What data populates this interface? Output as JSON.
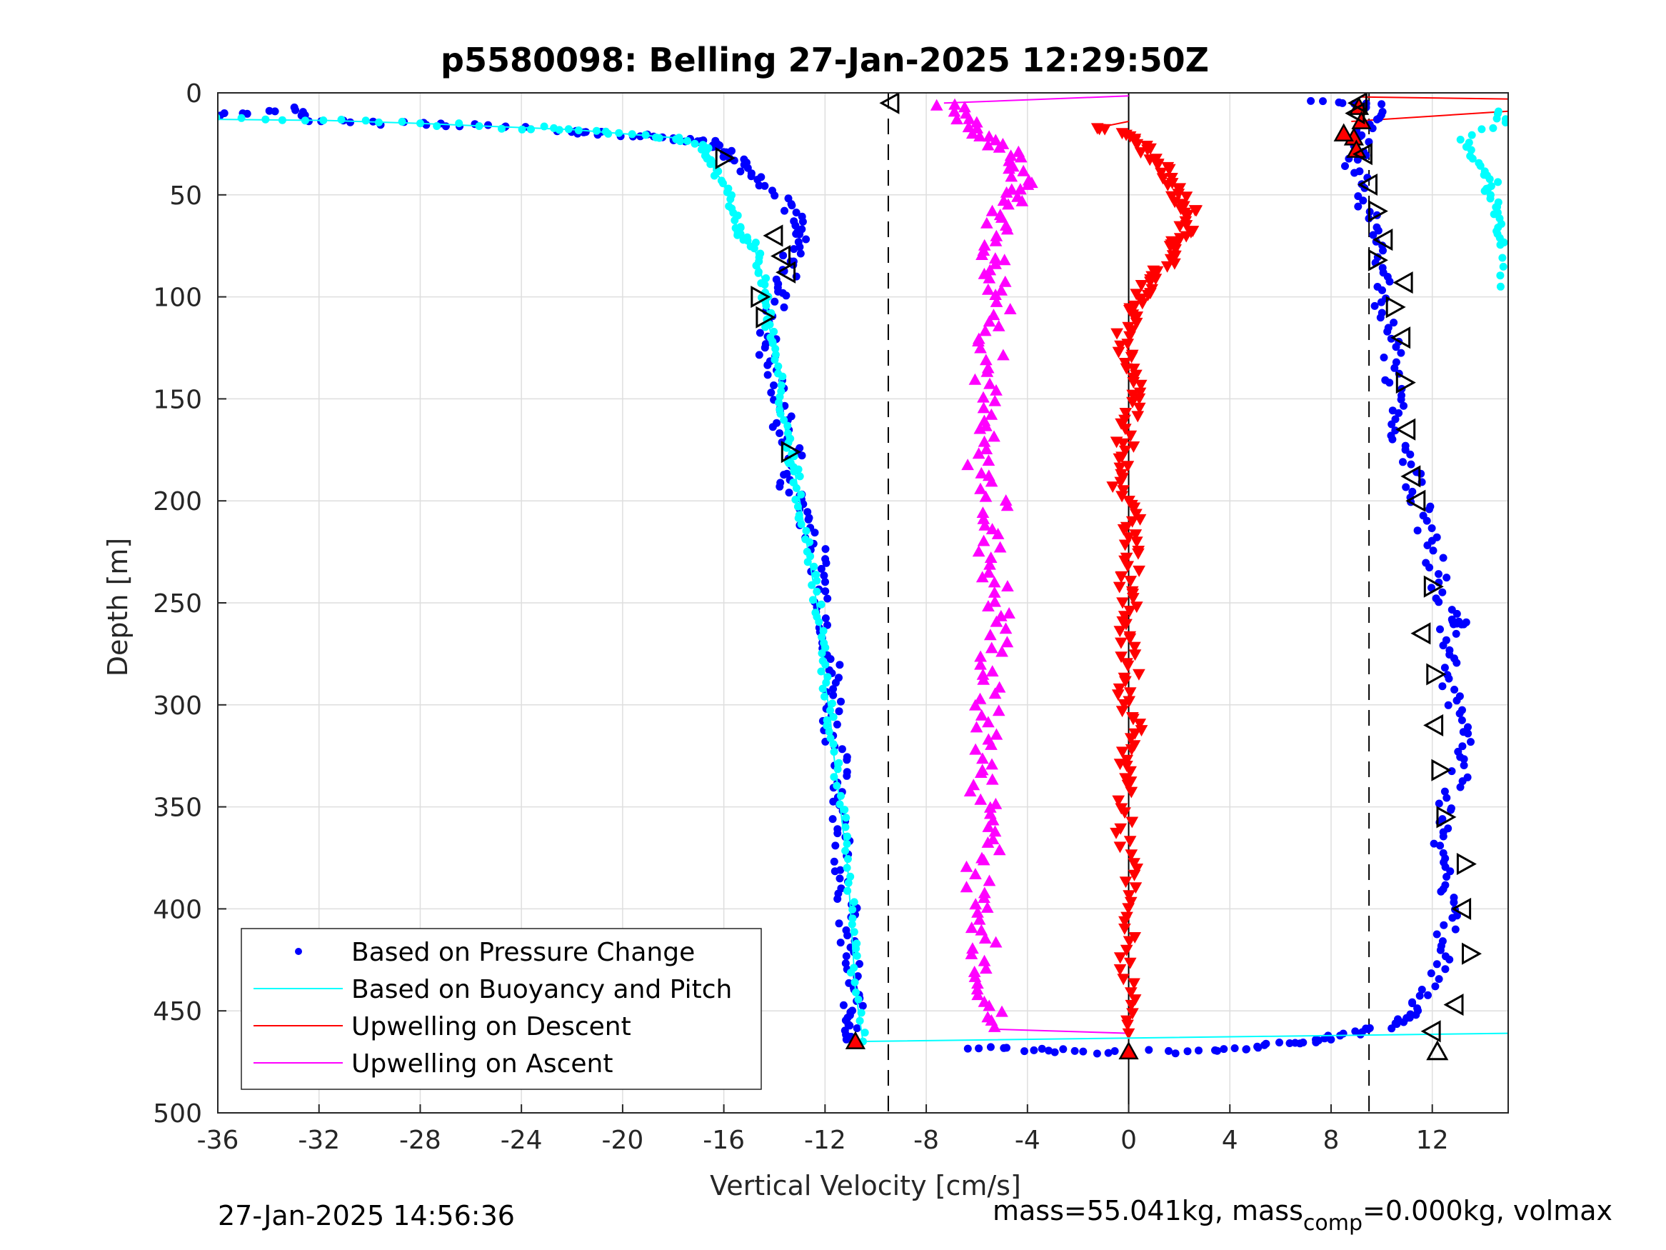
{
  "chart_data": {
    "type": "scatter",
    "title": "p5580098: Belling 27-Jan-2025 12:29:50Z",
    "xlabel": "Vertical Velocity [cm/s]",
    "ylabel": "Depth [m]",
    "xlim": [
      -36,
      15
    ],
    "ylim": [
      0,
      500
    ],
    "y_reversed": true,
    "grid": true,
    "xticks": [
      -36,
      -32,
      -28,
      -24,
      -20,
      -16,
      -12,
      -8,
      -4,
      0,
      4,
      8,
      12
    ],
    "xtick_labels": [
      "-36",
      "-32",
      "-28",
      "-24",
      "-20",
      "-16",
      "-12",
      "-8",
      "-4",
      "0",
      "4",
      "8",
      "12"
    ],
    "yticks": [
      0,
      50,
      100,
      150,
      200,
      250,
      300,
      350,
      400,
      450,
      500
    ],
    "ytick_labels": [
      "0",
      "50",
      "100",
      "150",
      "200",
      "250",
      "300",
      "350",
      "400",
      "450",
      "500"
    ],
    "reference_lines": {
      "zero_line_x": 0,
      "dashed_lines_x": [
        -9.5,
        9.5
      ]
    },
    "legend": {
      "location": "bottom-left",
      "entries": [
        {
          "label": "Based on Pressure Change",
          "color": "#0000ff",
          "marker": "dot"
        },
        {
          "label": "Based on Buoyancy and Pitch",
          "color": "#00ffff",
          "marker": "line"
        },
        {
          "label": "Upwelling on Descent",
          "color": "#ff0000",
          "marker": "line"
        },
        {
          "label": "Upwelling on Ascent",
          "color": "#ff00ff",
          "marker": "line"
        }
      ]
    },
    "series": [
      {
        "key": "pressure_descent",
        "color": "#0000ff",
        "marker": "dot",
        "x": [
          -35.9,
          -33.1,
          -32.1,
          -27.9,
          -25.4,
          -22.2,
          -20.8,
          -18.2,
          -17.0,
          -16.3,
          -15.9,
          -15.2,
          -14.7,
          -13.4,
          -13.2,
          -13.1,
          -13.3,
          -13.5,
          -13.8,
          -14.2,
          -14.3,
          -14.0,
          -13.6,
          -13.8,
          -13.0,
          -13.7,
          -12.9,
          -12.6,
          -12.3,
          -12.1,
          -12.0,
          -11.8,
          -11.7,
          -11.6,
          -11.7,
          -11.5,
          -11.4,
          -11.3,
          -11.3,
          -11.2,
          -11.1,
          -11.2,
          -11.0,
          -10.9,
          -10.9,
          -10.9,
          -10.8
        ],
        "y": [
          11,
          8,
          14,
          15,
          16,
          19,
          20,
          22,
          23,
          25,
          30,
          35,
          41,
          52,
          62,
          70,
          80,
          90,
          100,
          115,
          128,
          140,
          155,
          165,
          178,
          190,
          200,
          212,
          225,
          240,
          255,
          270,
          285,
          298,
          310,
          325,
          340,
          355,
          370,
          385,
          400,
          415,
          428,
          440,
          450,
          458,
          465
        ]
      },
      {
        "key": "pressure_ascent",
        "color": "#0000ff",
        "marker": "dot",
        "x": [
          -6.7,
          -3.8,
          -2.0,
          1.5,
          4.0,
          5.6,
          6.8,
          8.2,
          9.6,
          10.5,
          11.3,
          11.9,
          12.3,
          12.6,
          12.8,
          12.4,
          12.2,
          12.6,
          13.0,
          13.3,
          13.1,
          12.8,
          12.6,
          12.7,
          13.1,
          12.4,
          12.1,
          11.8,
          11.5,
          11.1,
          10.8,
          10.6,
          10.3,
          10.4,
          10.2,
          9.9,
          10.2,
          9.6,
          9.3,
          8.9,
          9.1,
          9.4,
          9.8,
          7.2
        ],
        "y": [
          468,
          469,
          470,
          470,
          469,
          467,
          465,
          463,
          460,
          456,
          450,
          440,
          425,
          410,
          395,
          380,
          365,
          350,
          335,
          320,
          305,
          290,
          275,
          260,
          260,
          245,
          230,
          215,
          200,
          185,
          170,
          155,
          140,
          125,
          110,
          95,
          80,
          65,
          50,
          35,
          25,
          15,
          5,
          4
        ]
      },
      {
        "key": "buoyancy_pitch",
        "color": "#00ffff",
        "marker": "line",
        "x": [
          -36.0,
          -31.7,
          -28.0,
          -24.0,
          -22.0,
          -20.0,
          -18.0,
          -17.0,
          -16.6,
          -16.5,
          -16.0,
          -15.7,
          -15.5,
          -15.3,
          -14.8,
          -14.6,
          -14.4,
          -14.3,
          -14.2,
          -14.0,
          -13.8,
          -13.7,
          -13.5,
          -13.3,
          -13.2,
          -13.0,
          -12.8,
          -12.6,
          -12.4,
          -12.2,
          -12.1,
          -12.0,
          -11.8,
          -11.7,
          -11.5,
          -11.3,
          -11.1,
          -11.0,
          -10.9,
          -10.8,
          -10.5,
          15.0
        ],
        "y": [
          13,
          13.5,
          15,
          17,
          18,
          20,
          22,
          25,
          30,
          35,
          45,
          55,
          65,
          70,
          75,
          85,
          95,
          105,
          115,
          125,
          140,
          155,
          170,
          180,
          185,
          200,
          215,
          230,
          245,
          260,
          275,
          290,
          305,
          320,
          340,
          360,
          380,
          400,
          420,
          440,
          465,
          461
        ]
      },
      {
        "key": "extra_cyan_points",
        "color": "#00ffff",
        "marker": "dot",
        "x": [
          14.8,
          14.7,
          13.3,
          13.6,
          14.1,
          14.4,
          14.2,
          14.6,
          14.5,
          14.7,
          14.8,
          14.7
        ],
        "y": [
          10,
          15,
          22,
          30,
          38,
          44,
          48,
          55,
          62,
          70,
          75,
          95
        ]
      },
      {
        "key": "upwelling_descent",
        "color": "#ff0000",
        "marker": "triangle-down",
        "x": [
          -1.2,
          0.3,
          0.8,
          1.3,
          1.8,
          2.2,
          2.6,
          2.2,
          1.8,
          1.5,
          1.0,
          0.5,
          0.2,
          -0.3,
          0.1,
          0.4,
          0.2,
          -0.2,
          0.0,
          -0.4,
          0.3,
          0.0,
          0.2,
          -0.2,
          0.1,
          -0.1,
          0.1,
          -0.3,
          0.2,
          -0.1,
          0.0,
          -0.2,
          0.1,
          -0.1,
          0.0,
          -0.1,
          0.0
        ],
        "y": [
          17,
          22,
          30,
          38,
          46,
          54,
          60,
          68,
          76,
          84,
          92,
          100,
          108,
          120,
          132,
          144,
          156,
          170,
          182,
          195,
          208,
          220,
          232,
          244,
          256,
          270,
          284,
          298,
          312,
          326,
          340,
          360,
          380,
          400,
          420,
          440,
          461
        ]
      },
      {
        "key": "upwelling_ascent",
        "color": "#ff00ff",
        "marker": "triangle-up",
        "x": [
          -7.3,
          -6.0,
          -5.2,
          -4.5,
          -4.2,
          -4.8,
          -5.4,
          -5.2,
          -5.1,
          -5.4,
          -5.6,
          -5.7,
          -5.9,
          -5.3,
          -5.5,
          -5.2,
          -5.0,
          -5.4,
          -5.6,
          -5.5,
          -5.8,
          -5.2,
          -5.9,
          -6.1,
          -5.7,
          -5.5,
          -5.3
        ],
        "y": [
          5,
          15,
          25,
          35,
          45,
          55,
          70,
          85,
          100,
          120,
          140,
          160,
          180,
          200,
          220,
          240,
          260,
          280,
          300,
          320,
          340,
          360,
          380,
          400,
          420,
          440,
          458
        ]
      }
    ],
    "upwelling_connectors": {
      "red_lines": [
        [
          9.2,
          2,
          15,
          3
        ],
        [
          8.8,
          14,
          15,
          9
        ],
        [
          -1.2,
          17,
          0.0,
          14
        ]
      ],
      "magenta_lines": [
        [
          -7.3,
          5,
          0.0,
          1.5
        ],
        [
          -5.3,
          459,
          0.0,
          461
        ]
      ]
    },
    "red_marker_triangles": {
      "x": [
        9.1,
        9.2,
        8.9,
        8.5,
        9.0,
        -10.8,
        0.0
      ],
      "y": [
        7,
        14,
        22,
        20,
        28,
        465,
        470
      ]
    },
    "black_triangles": {
      "x": [
        -16.0,
        -14.0,
        -13.7,
        -13.5,
        -14.6,
        -14.4,
        -13.4,
        -9.4,
        9.1,
        9.0,
        9.3,
        9.5,
        9.8,
        10.1,
        9.8,
        10.9,
        10.5,
        10.8,
        10.9,
        11.0,
        11.2,
        11.4,
        12.0,
        11.6,
        12.1,
        12.1,
        12.3,
        12.5,
        13.3,
        13.2,
        13.5,
        12.9,
        12.2,
        12.0
      ],
      "y": [
        32,
        70,
        80,
        88,
        100,
        110,
        176,
        5,
        5,
        10,
        30,
        45,
        58,
        72,
        82,
        93,
        105,
        120,
        142,
        165,
        188,
        200,
        242,
        265,
        285,
        310,
        332,
        355,
        378,
        400,
        422,
        447,
        470,
        460
      ],
      "direction": [
        "right",
        "left",
        "left",
        "left",
        "right",
        "right",
        "right",
        "left",
        "left",
        "left",
        "left",
        "left",
        "right",
        "left",
        "right",
        "left",
        "right",
        "left",
        "right",
        "left",
        "left",
        "left",
        "right",
        "left",
        "right",
        "left",
        "right",
        "right",
        "right",
        "left",
        "right",
        "left",
        "up",
        "left"
      ]
    }
  },
  "footer": {
    "timestamp": "27-Jan-2025 14:56:36",
    "mass_text_main": "mass=55.041kg, mass",
    "mass_text_sub": "comp",
    "mass_text_tail": "=0.000kg, volmax"
  }
}
